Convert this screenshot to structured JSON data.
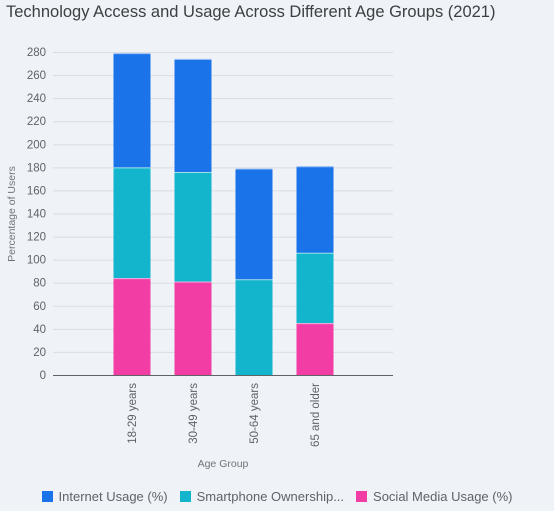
{
  "chart_data": {
    "type": "bar",
    "stacked": true,
    "title": "Technology Access and Usage Across Different Age Groups (2021)",
    "xlabel": "Age Group",
    "ylabel": "Percentage of Users",
    "categories": [
      "18-29 years",
      "30-49 years",
      "50-64 years",
      "65 and older"
    ],
    "series": [
      {
        "name": "Social Media Usage (%)",
        "color": "#f23da5",
        "values": [
          84,
          81,
          0,
          45
        ]
      },
      {
        "name": "Smartphone Ownership (%)",
        "color": "#12b5cb",
        "values": [
          96,
          95,
          83,
          61
        ]
      },
      {
        "name": "Internet Usage (%)",
        "color": "#1a73e8",
        "values": [
          99,
          98,
          96,
          75
        ]
      }
    ],
    "ylim": [
      0,
      280
    ],
    "yticks": [
      0,
      20,
      40,
      60,
      80,
      100,
      120,
      140,
      160,
      180,
      200,
      220,
      240,
      260,
      280
    ],
    "grid": true,
    "legend_position": "bottom"
  },
  "legend": [
    {
      "label": "Internet Usage (%)",
      "color": "#1a73e8"
    },
    {
      "label": "Smartphone Ownership...",
      "color": "#12b5cb"
    },
    {
      "label": "Social Media Usage (%)",
      "color": "#f23da5"
    }
  ]
}
